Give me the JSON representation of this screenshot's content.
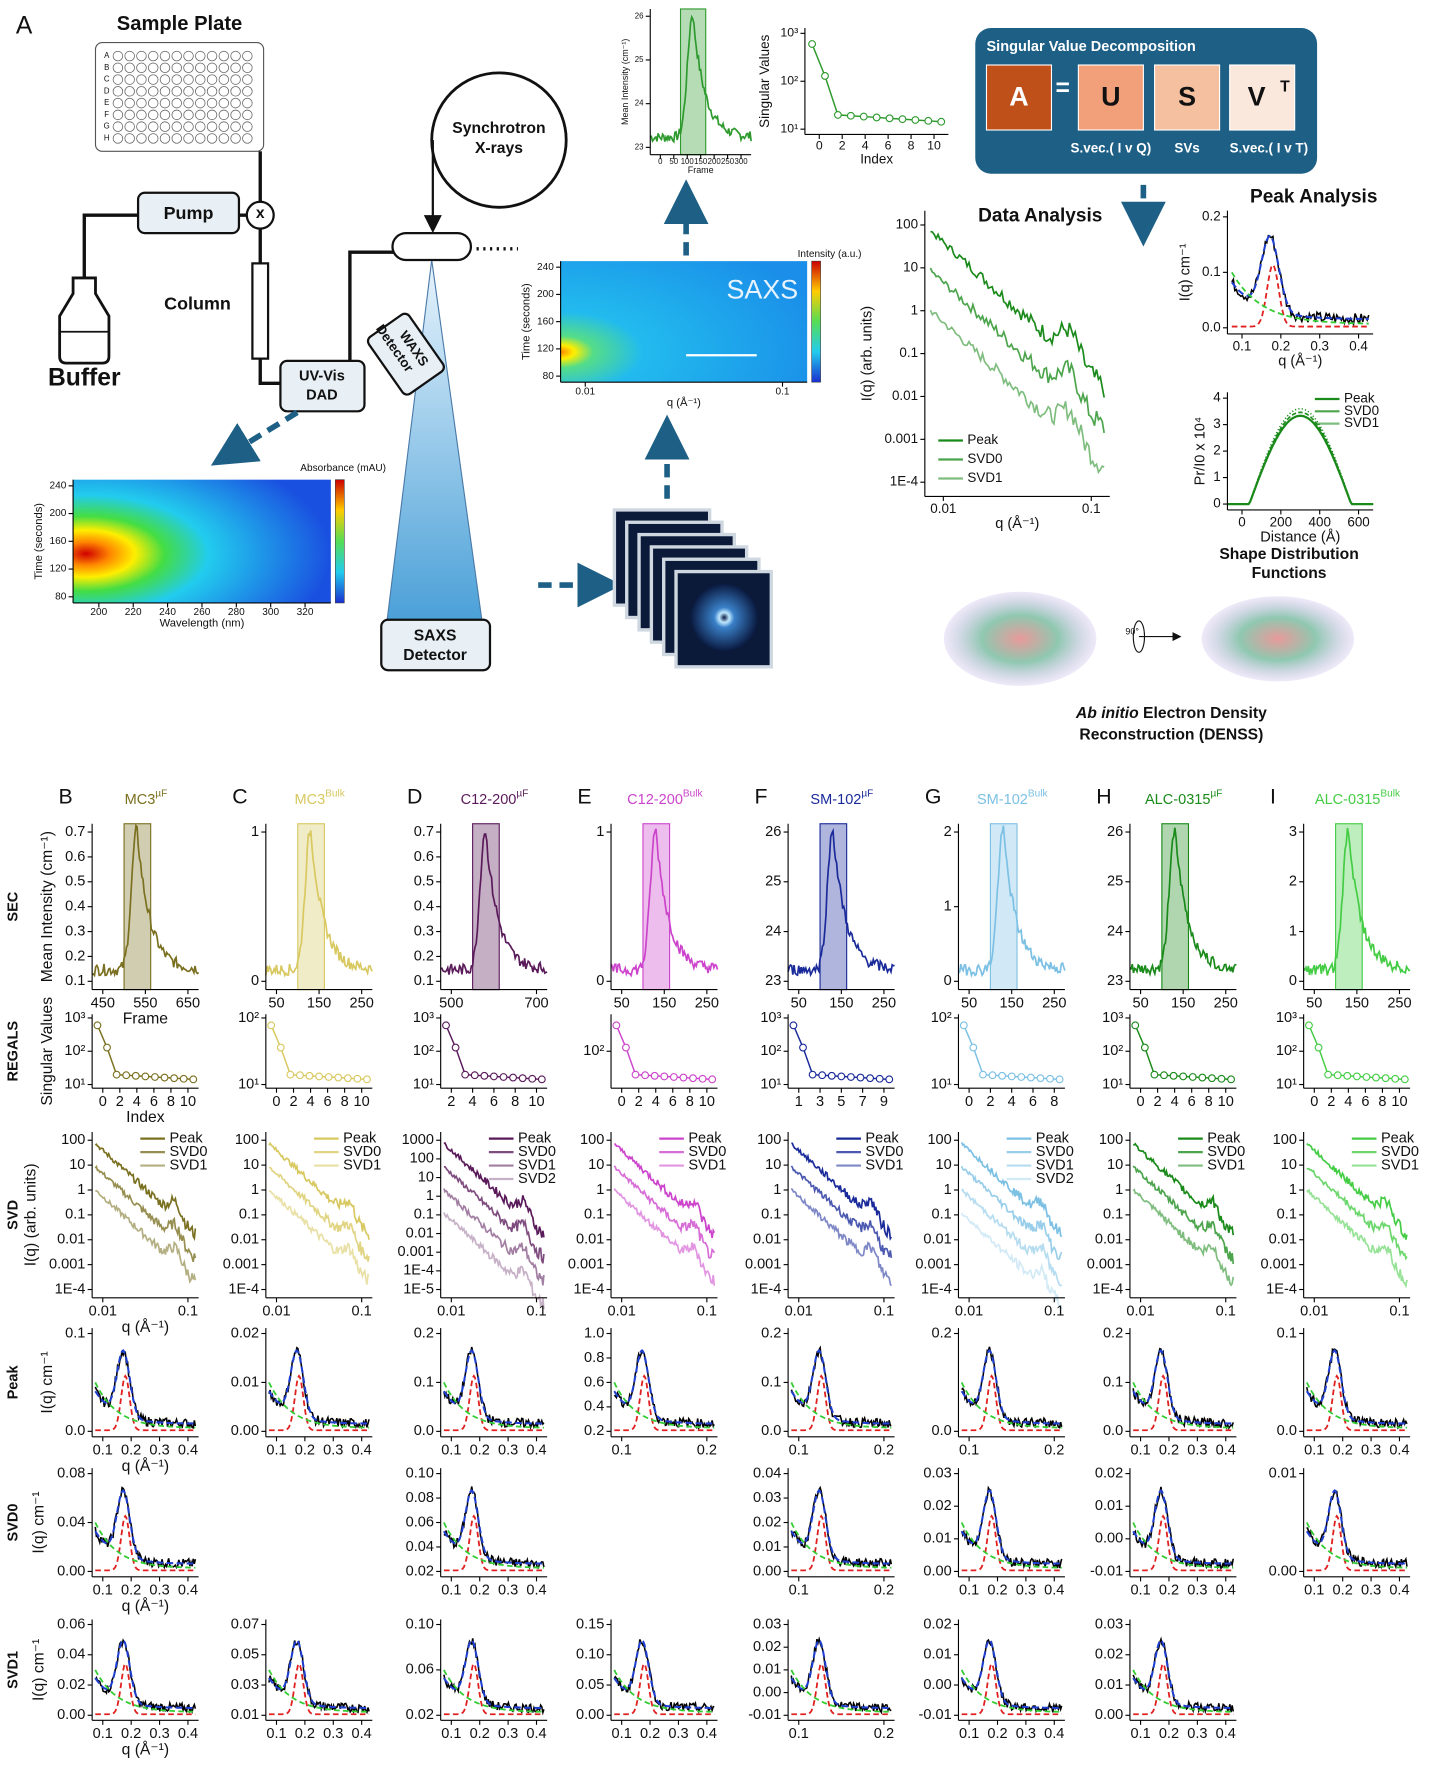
{
  "panel_a": {
    "label": "A",
    "sample_plate": "Sample Plate",
    "plate_rows": [
      "A",
      "B",
      "C",
      "D",
      "E",
      "F",
      "G",
      "H"
    ],
    "pump": "Pump",
    "valve": "x",
    "column": "Column",
    "buffer": "Buffer",
    "uvvis": [
      "UV-Vis",
      "DAD"
    ],
    "waxs": [
      "WAXS",
      "Detector"
    ],
    "synchrotron": [
      "Synchrotron",
      "X-rays"
    ],
    "saxs_detector": [
      "SAXS",
      "Detector"
    ],
    "uv_heatmap": {
      "colorbar_title": "Absorbance (mAU)",
      "ylabel": "Time (seconds)",
      "yticks": [
        "80",
        "120",
        "160",
        "200",
        "240"
      ],
      "xlabel": "Wavelength (nm)",
      "xticks": [
        "200",
        "220",
        "240",
        "260",
        "280",
        "300",
        "320"
      ]
    },
    "saxs_heatmap": {
      "label": "SAXS",
      "colorbar_title": "Intensity (a.u.)",
      "ylabel": "Time (seconds)",
      "yticks": [
        "80",
        "120",
        "160",
        "200",
        "240"
      ],
      "xlabel": "q (Å⁻¹)",
      "xticks": [
        "0.01",
        "0.1"
      ]
    },
    "sec_inset": {
      "ylabel": "Mean Intensity (cm⁻¹)",
      "yticks": [
        "23",
        "24",
        "25",
        "26"
      ],
      "xlabel": "Frame",
      "xticks": [
        "0",
        "50",
        "100",
        "150",
        "200",
        "250",
        "300"
      ]
    },
    "sv_inset": {
      "ylabel": "Singular Values",
      "yticks": [
        "10¹",
        "10²",
        "10³"
      ],
      "xlabel": "Index",
      "xticks": [
        "0",
        "2",
        "4",
        "6",
        "8",
        "10"
      ]
    },
    "svd_box": {
      "title": "Singular Value Decomposition",
      "a": "A",
      "eq": "=",
      "u": "U",
      "s": "S",
      "v": "V",
      "v_sup": "T",
      "captions": [
        "S.vec.( I v Q)",
        "SVs",
        "S.vec.( I v T)"
      ]
    },
    "data_analysis": {
      "title": "Data Analysis",
      "ylabel": "I(q) (arb. units)",
      "yticks": [
        "1E-4",
        "0.001",
        "0.01",
        "0.1",
        "1",
        "10",
        "100"
      ],
      "xlabel": "q (Å⁻¹)",
      "xticks": [
        "0.01",
        "0.1"
      ],
      "legend": [
        "Peak",
        "SVD0",
        "SVD1"
      ]
    },
    "peak_analysis": {
      "title": "Peak Analysis",
      "ylabel": "I(q) cm⁻¹",
      "yticks": [
        "0.0",
        "0.1",
        "0.2"
      ],
      "xlabel": "q (Å⁻¹)",
      "xticks": [
        "0.1",
        "0.2",
        "0.3",
        "0.4"
      ]
    },
    "pr": {
      "ylabel": "Pr/I0 x 10⁴",
      "yticks": [
        "0",
        "1",
        "2",
        "3",
        "4"
      ],
      "xlabel": "Distance (Å)",
      "xticks": [
        "0",
        "200",
        "400",
        "600"
      ],
      "legend": [
        "Peak",
        "SVD0",
        "SVD1"
      ],
      "caption": [
        "Shape Distribution",
        "Functions"
      ]
    },
    "denss": {
      "rotation": "90°",
      "caption_italic": "Ab initio",
      "caption_rest": " Electron Density",
      "caption_line2": "Reconstruction (DENSS)"
    }
  },
  "row_labels": [
    "SEC",
    "REGALS",
    "SVD",
    "Peak",
    "SVD0",
    "SVD1"
  ],
  "panels": [
    {
      "letter": "B",
      "title": {
        "base": "MC3",
        "sup": "µF"
      },
      "color": "#7a7020",
      "sec": {
        "ylabel": "Mean Intensity (cm⁻¹)",
        "yticks": [
          "0.1",
          "0.2",
          "0.3",
          "0.4",
          "0.5",
          "0.6",
          "0.7"
        ],
        "xticks": [
          "450",
          "550",
          "650"
        ],
        "xlabel": "Frame"
      },
      "regals": {
        "ylabel": "Singular Values",
        "yticks": [
          "10¹",
          "10²",
          "10³"
        ],
        "xticks": [
          "0",
          "2",
          "4",
          "6",
          "8",
          "10"
        ],
        "xlabel": "Index"
      },
      "svd": {
        "ylabel": "I(q) (arb. units)",
        "yticks": [
          "1E-4",
          "0.001",
          "0.01",
          "0.1",
          "1",
          "10",
          "100"
        ],
        "xticks": [
          "0.01",
          "0.1"
        ],
        "xlabel": "q (Å⁻¹)",
        "legend": [
          "Peak",
          "SVD0",
          "SVD1"
        ]
      },
      "peak": {
        "ylabel": "I(q) cm⁻¹",
        "yticks": [
          "0.0",
          "0.1"
        ],
        "xticks": [
          "0.1",
          "0.2",
          "0.3",
          "0.4"
        ],
        "xlabel": "q (Å⁻¹)"
      },
      "svd0": {
        "ylabel": "I(q) cm⁻¹",
        "yticks": [
          "0.00",
          "0.04",
          "0.08"
        ],
        "xticks": [
          "0.1",
          "0.2",
          "0.3",
          "0.4"
        ],
        "xlabel": "q (Å⁻¹)"
      },
      "svd1": {
        "ylabel": "I(q) cm⁻¹",
        "yticks": [
          "0.00",
          "0.02",
          "0.04",
          "0.06"
        ],
        "xticks": [
          "0.1",
          "0.2",
          "0.3",
          "0.4"
        ],
        "xlabel": "q (Å⁻¹)"
      }
    },
    {
      "letter": "C",
      "title": {
        "base": "MC3",
        "sup": "Bulk"
      },
      "color": "#d8c860",
      "sec": {
        "yticks": [
          "0",
          "1"
        ],
        "xticks": [
          "50",
          "150",
          "250"
        ]
      },
      "regals": {
        "yticks": [
          "10¹",
          "10²"
        ],
        "xticks": [
          "0",
          "2",
          "4",
          "6",
          "8",
          "10"
        ]
      },
      "svd": {
        "yticks": [
          "1E-4",
          "0.001",
          "0.01",
          "0.1",
          "1",
          "10",
          "100"
        ],
        "xticks": [
          "0.01",
          "0.1"
        ],
        "legend": [
          "Peak",
          "SVD0",
          "SVD1"
        ]
      },
      "peak": {
        "yticks": [
          "0.00",
          "0.01",
          "0.02"
        ],
        "xticks": [
          "0.1",
          "0.2",
          "0.3",
          "0.4"
        ]
      },
      "svd1": {
        "yticks": [
          "0.01",
          "0.03",
          "0.05",
          "0.07"
        ],
        "xticks": [
          "0.1",
          "0.2",
          "0.3",
          "0.4"
        ]
      }
    },
    {
      "letter": "D",
      "title": {
        "base": "C12-200",
        "sup": "µF"
      },
      "color": "#5a1a5a",
      "sec": {
        "yticks": [
          "0.1",
          "0.2",
          "0.3",
          "0.4",
          "0.5",
          "0.6",
          "0.7"
        ],
        "xticks": [
          "500",
          "700"
        ]
      },
      "regals": {
        "yticks": [
          "10¹",
          "10²",
          "10³"
        ],
        "xticks": [
          "2",
          "4",
          "6",
          "8",
          "10"
        ]
      },
      "svd": {
        "yticks": [
          "1E-5",
          "1E-4",
          "0.001",
          "0.01",
          "0.1",
          "1",
          "10",
          "100",
          "1000"
        ],
        "xticks": [
          "0.01",
          "0.1"
        ],
        "legend": [
          "Peak",
          "SVD0",
          "SVD1",
          "SVD2"
        ]
      },
      "peak": {
        "yticks": [
          "0.0",
          "0.1",
          "0.2"
        ],
        "xticks": [
          "0.1",
          "0.2",
          "0.3",
          "0.4"
        ]
      },
      "svd0": {
        "yticks": [
          "0.02",
          "0.04",
          "0.06",
          "0.08",
          "0.10"
        ],
        "xticks": [
          "0.1",
          "0.2",
          "0.3",
          "0.4"
        ]
      },
      "svd1": {
        "yticks": [
          "0.02",
          "0.06",
          "0.10"
        ],
        "xticks": [
          "0.1",
          "0.2",
          "0.3",
          "0.4"
        ]
      }
    },
    {
      "letter": "E",
      "title": {
        "base": "C12-200",
        "sup": "Bulk"
      },
      "color": "#cc44cc",
      "sec": {
        "yticks": [
          "0",
          "1"
        ],
        "xticks": [
          "50",
          "150",
          "250"
        ]
      },
      "regals": {
        "yticks": [
          "10²"
        ],
        "xticks": [
          "0",
          "2",
          "4",
          "6",
          "8",
          "10"
        ]
      },
      "svd": {
        "yticks": [
          "1E-4",
          "0.001",
          "0.01",
          "0.1",
          "1",
          "10",
          "100"
        ],
        "xticks": [
          "0.01",
          "0.1"
        ],
        "legend": [
          "Peak",
          "SVD0",
          "SVD1"
        ]
      },
      "peak": {
        "yticks": [
          "0.2",
          "0.4",
          "0.6",
          "0.8",
          "1.0"
        ],
        "xticks": [
          "0.1",
          "0.2"
        ]
      },
      "svd1": {
        "yticks": [
          "0.00",
          "0.05",
          "0.10",
          "0.15"
        ],
        "xticks": [
          "0.1",
          "0.2",
          "0.3",
          "0.4"
        ]
      }
    },
    {
      "letter": "F",
      "title": {
        "base": "SM-102",
        "sup": "µF"
      },
      "color": "#1a2a9a",
      "sec": {
        "yticks": [
          "23",
          "24",
          "25",
          "26"
        ],
        "xticks": [
          "50",
          "150",
          "250"
        ]
      },
      "regals": {
        "yticks": [
          "10¹",
          "10²",
          "10³"
        ],
        "xticks": [
          "1",
          "3",
          "5",
          "7",
          "9"
        ]
      },
      "svd": {
        "yticks": [
          "1E-4",
          "0.001",
          "0.01",
          "0.1",
          "1",
          "10",
          "100"
        ],
        "xticks": [
          "0.01",
          "0.1"
        ],
        "legend": [
          "Peak",
          "SVD0",
          "SVD1"
        ]
      },
      "peak": {
        "yticks": [
          "0.0",
          "0.1",
          "0.2"
        ],
        "xticks": [
          "0.1",
          "0.2"
        ]
      },
      "svd0": {
        "yticks": [
          "0.00",
          "0.01",
          "0.02",
          "0.03",
          "0.04"
        ],
        "xticks": [
          "0.1",
          "0.2"
        ]
      },
      "svd1": {
        "yticks": [
          "-0.01",
          "0.00",
          "0.01",
          "0.02",
          "0.03"
        ],
        "xticks": [
          "0.1",
          "0.2"
        ]
      }
    },
    {
      "letter": "G",
      "title": {
        "base": "SM-102",
        "sup": "Bulk"
      },
      "color": "#7cc0e4",
      "sec": {
        "yticks": [
          "0",
          "1",
          "2"
        ],
        "xticks": [
          "50",
          "150",
          "250"
        ]
      },
      "regals": {
        "yticks": [
          "10¹",
          "10²"
        ],
        "xticks": [
          "0",
          "2",
          "4",
          "6",
          "8"
        ]
      },
      "svd": {
        "yticks": [
          "1E-4",
          "0.001",
          "0.01",
          "0.1",
          "1",
          "10",
          "100"
        ],
        "xticks": [
          "0.01",
          "0.1"
        ],
        "legend": [
          "Peak",
          "SVD0",
          "SVD1",
          "SVD2"
        ]
      },
      "peak": {
        "yticks": [
          "0.0",
          "0.2"
        ],
        "xticks": [
          "0.1",
          "0.2"
        ]
      },
      "svd0": {
        "yticks": [
          "0.00",
          "0.01",
          "0.02",
          "0.03"
        ],
        "xticks": [
          "0.1",
          "0.2",
          "0.3",
          "0.4"
        ]
      },
      "svd1": {
        "yticks": [
          "-0.01",
          "0.00",
          "0.01",
          "0.02"
        ],
        "xticks": [
          "0.1",
          "0.2",
          "0.3",
          "0.4"
        ]
      }
    },
    {
      "letter": "H",
      "title": {
        "base": "ALC-0315",
        "sup": "µF"
      },
      "color": "#1a8a1a",
      "sec": {
        "yticks": [
          "23",
          "24",
          "25",
          "26"
        ],
        "xticks": [
          "50",
          "150",
          "250"
        ]
      },
      "regals": {
        "yticks": [
          "10¹",
          "10²",
          "10³"
        ],
        "xticks": [
          "0",
          "2",
          "4",
          "6",
          "8",
          "10"
        ]
      },
      "svd": {
        "yticks": [
          "1E-4",
          "0.001",
          "0.01",
          "0.1",
          "1",
          "10",
          "100"
        ],
        "xticks": [
          "0.01",
          "0.1"
        ],
        "legend": [
          "Peak",
          "SVD0",
          "SVD1"
        ]
      },
      "peak": {
        "yticks": [
          "0.0",
          "0.1",
          "0.2"
        ],
        "xticks": [
          "0.1",
          "0.2",
          "0.3",
          "0.4"
        ]
      },
      "svd0": {
        "yticks": [
          "-0.01",
          "0.00",
          "0.01",
          "0.02"
        ],
        "xticks": [
          "0.1",
          "0.2",
          "0.3",
          "0.4"
        ]
      },
      "svd1": {
        "yticks": [
          "0.00",
          "0.01",
          "0.02",
          "0.03"
        ],
        "xticks": [
          "0.1",
          "0.2",
          "0.3",
          "0.4"
        ]
      }
    },
    {
      "letter": "I",
      "title": {
        "base": "ALC-0315",
        "sup": "Bulk"
      },
      "color": "#44cc44",
      "sec": {
        "yticks": [
          "0",
          "1",
          "2",
          "3"
        ],
        "xticks": [
          "50",
          "150",
          "250"
        ]
      },
      "regals": {
        "yticks": [
          "10¹",
          "10²",
          "10³"
        ],
        "xticks": [
          "0",
          "2",
          "4",
          "6",
          "8",
          "10"
        ]
      },
      "svd": {
        "yticks": [
          "1E-4",
          "0.001",
          "0.01",
          "0.1",
          "1",
          "10",
          "100"
        ],
        "xticks": [
          "0.01",
          "0.1"
        ],
        "legend": [
          "Peak",
          "SVD0",
          "SVD1"
        ]
      },
      "peak": {
        "yticks": [
          "0.0",
          "0.1"
        ],
        "xticks": [
          "0.1",
          "0.2",
          "0.3",
          "0.4"
        ]
      },
      "svd0": {
        "yticks": [
          "0.00",
          "0.01"
        ],
        "xticks": [
          "0.1",
          "0.2",
          "0.3",
          "0.4"
        ]
      }
    }
  ]
}
